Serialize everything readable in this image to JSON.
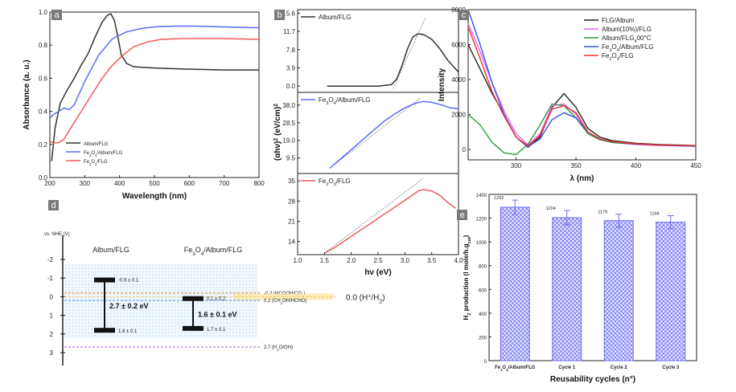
{
  "chart_data": [
    {
      "panel": "a",
      "type": "line",
      "xlabel": "Wavelength (nm)",
      "ylabel": "Absorbance (a. u.)",
      "xlim": [
        200,
        800
      ],
      "ylim": [
        0.0,
        1.0
      ],
      "xticks": [
        "200",
        "300",
        "400",
        "500",
        "600",
        "700",
        "800"
      ],
      "yticks": [
        "0.0",
        "0.2",
        "0.4",
        "0.6",
        "0.8",
        "1.0"
      ],
      "legend_position": "bottom-left",
      "series": [
        {
          "name": "Album/FLG",
          "color": "#333333",
          "x": [
            205,
            215,
            230,
            250,
            270,
            290,
            310,
            330,
            350,
            365,
            375,
            385,
            395,
            405,
            420,
            440,
            470,
            520,
            600,
            700,
            800
          ],
          "y": [
            0.1,
            0.3,
            0.45,
            0.53,
            0.6,
            0.68,
            0.75,
            0.85,
            0.94,
            0.98,
            0.99,
            0.95,
            0.85,
            0.74,
            0.69,
            0.67,
            0.665,
            0.66,
            0.655,
            0.65,
            0.65
          ]
        },
        {
          "name": "Fe3O4/Album/FLG",
          "color": "#5a6cf5",
          "x": [
            200,
            210,
            225,
            240,
            255,
            270,
            300,
            340,
            380,
            420,
            460,
            500,
            560,
            620,
            700,
            800
          ],
          "y": [
            0.36,
            0.38,
            0.4,
            0.42,
            0.41,
            0.44,
            0.58,
            0.74,
            0.84,
            0.88,
            0.9,
            0.91,
            0.915,
            0.915,
            0.91,
            0.905
          ]
        },
        {
          "name": "Fe2O3/FLG",
          "color": "#f25a5a",
          "x": [
            200,
            210,
            225,
            240,
            260,
            290,
            320,
            350,
            380,
            410,
            440,
            480,
            520,
            580,
            650,
            700,
            800
          ],
          "y": [
            0.22,
            0.21,
            0.21,
            0.23,
            0.3,
            0.4,
            0.5,
            0.6,
            0.68,
            0.74,
            0.79,
            0.82,
            0.835,
            0.84,
            0.84,
            0.84,
            0.835
          ]
        }
      ]
    },
    {
      "panel": "b",
      "type": "line",
      "xlabel": "hν (eV)",
      "ylabel": "(αhν)2 (eV/cm)2",
      "xlim": [
        1.0,
        4.0
      ],
      "xticks": [
        "1.0",
        "1.5",
        "2.0",
        "2.5",
        "3.0",
        "3.5",
        "4.0"
      ],
      "subplots": [
        {
          "name": "Album/FLG",
          "color": "#333333",
          "ylim": [
            -1.0,
            16.0
          ],
          "yticks": [
            "0.0",
            "3.9",
            "7.8",
            "11.7",
            "15.6"
          ],
          "x": [
            1.55,
            2.5,
            2.75,
            2.85,
            2.95,
            3.05,
            3.15,
            3.25,
            3.35,
            3.5,
            3.65,
            3.8,
            4.0
          ],
          "y": [
            0.0,
            0.0,
            0.3,
            1.5,
            4.5,
            8.0,
            10.5,
            11.2,
            11.0,
            10.0,
            8.0,
            5.5,
            3.0
          ],
          "fit_line": {
            "x1": 2.78,
            "y1": -0.5,
            "x2": 3.38,
            "y2": 14.5
          }
        },
        {
          "name": "Fe3O4/Album/FLG",
          "color": "#5a6cf5",
          "ylim": [
            2.0,
            44.0
          ],
          "yticks": [
            "9.5",
            "19.0",
            "28.5",
            "38.0"
          ],
          "x": [
            1.6,
            1.8,
            2.0,
            2.2,
            2.4,
            2.6,
            2.8,
            3.0,
            3.2,
            3.35,
            3.5,
            3.7,
            3.85,
            4.0
          ],
          "y": [
            4.0,
            9.0,
            14.0,
            19.0,
            24.0,
            29.0,
            33.0,
            36.5,
            39.0,
            40.0,
            39.5,
            38.0,
            36.5,
            36.0
          ],
          "fit_line": {
            "x1": 1.6,
            "y1": 4.0,
            "x2": 3.3,
            "y2": 42.0
          }
        },
        {
          "name": "Fe2O3/FLG",
          "color": "#f25a5a",
          "ylim": [
            10.0,
            37.0
          ],
          "yticks": [
            "14",
            "21",
            "28",
            "35"
          ],
          "x": [
            1.5,
            1.7,
            1.9,
            2.1,
            2.3,
            2.5,
            2.7,
            2.9,
            3.1,
            3.25,
            3.35,
            3.5,
            3.65,
            3.8,
            3.95
          ],
          "y": [
            10.0,
            12.0,
            14.5,
            17.0,
            19.5,
            22.0,
            24.5,
            27.0,
            29.5,
            31.5,
            32.0,
            31.5,
            30.0,
            27.5,
            25.5
          ],
          "fit_line": {
            "x1": 1.5,
            "y1": 10.0,
            "x2": 3.35,
            "y2": 36.0
          }
        }
      ]
    },
    {
      "panel": "c",
      "type": "line",
      "xlabel": "λ (nm)",
      "ylabel": "Intensity",
      "xlim": [
        260,
        450
      ],
      "ylim": [
        -600,
        8000
      ],
      "xticks": [
        "300",
        "350",
        "400",
        "450"
      ],
      "yticks": [
        "0",
        "2000",
        "4000",
        "6000",
        "8000"
      ],
      "legend_position": "top-right",
      "series": [
        {
          "name": "FLG/Album",
          "color": "#222222",
          "x": [
            260,
            270,
            280,
            290,
            300,
            310,
            320,
            330,
            340,
            350,
            360,
            370,
            380,
            400,
            420,
            450
          ],
          "y": [
            6000,
            4600,
            3200,
            2000,
            700,
            120,
            700,
            2400,
            3200,
            2400,
            1200,
            700,
            500,
            350,
            280,
            220
          ]
        },
        {
          "name": "Album(10%)/FLG",
          "color": "#ee66ee",
          "x": [
            260,
            270,
            280,
            290,
            300,
            310,
            320,
            330,
            340,
            350,
            360,
            370,
            380,
            400,
            420,
            450
          ],
          "y": [
            7200,
            5600,
            3800,
            2200,
            900,
            250,
            900,
            2500,
            2600,
            2000,
            900,
            550,
            400,
            280,
            220,
            180
          ]
        },
        {
          "name": "Album/FLG400°C",
          "color": "#2e9a3a",
          "x": [
            260,
            270,
            280,
            290,
            300,
            310,
            320,
            330,
            340,
            350,
            360,
            370,
            380,
            400,
            420,
            450
          ],
          "y": [
            2000,
            1400,
            400,
            -200,
            -300,
            300,
            1400,
            2600,
            2500,
            1800,
            900,
            550,
            400,
            300,
            240,
            200
          ]
        },
        {
          "name": "Fe3O4/Album/FLG",
          "color": "#3355ee",
          "x": [
            260,
            270,
            280,
            290,
            300,
            310,
            320,
            330,
            340,
            350,
            360,
            370,
            380,
            400,
            420,
            450
          ],
          "y": [
            8000,
            6000,
            3800,
            2000,
            700,
            150,
            600,
            1700,
            2100,
            1800,
            1000,
            600,
            450,
            300,
            240,
            180
          ]
        },
        {
          "name": "Fe2O3/FLG",
          "color": "#ee3333",
          "x": [
            260,
            270,
            280,
            290,
            300,
            310,
            320,
            330,
            340,
            350,
            360,
            370,
            380,
            400,
            420,
            450
          ],
          "y": [
            7000,
            5200,
            3300,
            1900,
            700,
            200,
            800,
            2300,
            2500,
            2100,
            1000,
            600,
            450,
            320,
            250,
            200
          ]
        }
      ]
    },
    {
      "panel": "e",
      "type": "bar",
      "xlabel": "Reusability cycles (n°)",
      "ylabel": "H2 production (l mole/h.gcat)",
      "ylim": [
        0,
        1400
      ],
      "yticks": [
        "0",
        "200",
        "400",
        "600",
        "800",
        "1000",
        "1200",
        "1400"
      ],
      "categories": [
        "Fe3O4/Album/FLG",
        "Cycle 1",
        "Cycle 2",
        "Cycle 3"
      ],
      "values": [
        1292,
        1204,
        1179,
        1166
      ],
      "value_labels": [
        "1292",
        "1204",
        "1179",
        "1166"
      ],
      "errors": [
        60,
        60,
        55,
        55
      ],
      "bar_color": "#6f6ff0"
    }
  ],
  "panel_d": {
    "panel": "d",
    "ref_label": "vs. NHE (V)",
    "yticks": [
      "-2",
      "-1",
      "0",
      "1",
      "2",
      "3"
    ],
    "materials": [
      {
        "name": "Album/FLG",
        "cb_value": -0.9,
        "vb_value": 1.8,
        "cb_label": "-0.9 ± 0.1",
        "vb_label": "1.8 ± 0.1",
        "gap_label": "2.7 ± 0.2 eV"
      },
      {
        "name": "Fe3O4/Album/FLG",
        "cb_value": 0.1,
        "vb_value": 1.7,
        "cb_label": "0.1 ± 0.2",
        "vb_label": "1.7 ± 0.1",
        "gap_label": "1.6 ± 0.1 eV"
      }
    ],
    "levels": [
      {
        "label": "-0.2 (HCOOH/CO2)",
        "value": -0.2,
        "color": "#e08a3c"
      },
      {
        "label": "0.0 (H+/H2)",
        "value": 0.0,
        "color": "#f0c040"
      },
      {
        "label": "0.2 (CH3OH/HCHO)",
        "value": 0.2,
        "color": "#4a90d9"
      },
      {
        "label": "2.7 (H2O/OH)",
        "value": 2.7,
        "color": "#b060d0"
      }
    ]
  },
  "panel_tags": [
    "a",
    "b",
    "c",
    "d",
    "e"
  ]
}
